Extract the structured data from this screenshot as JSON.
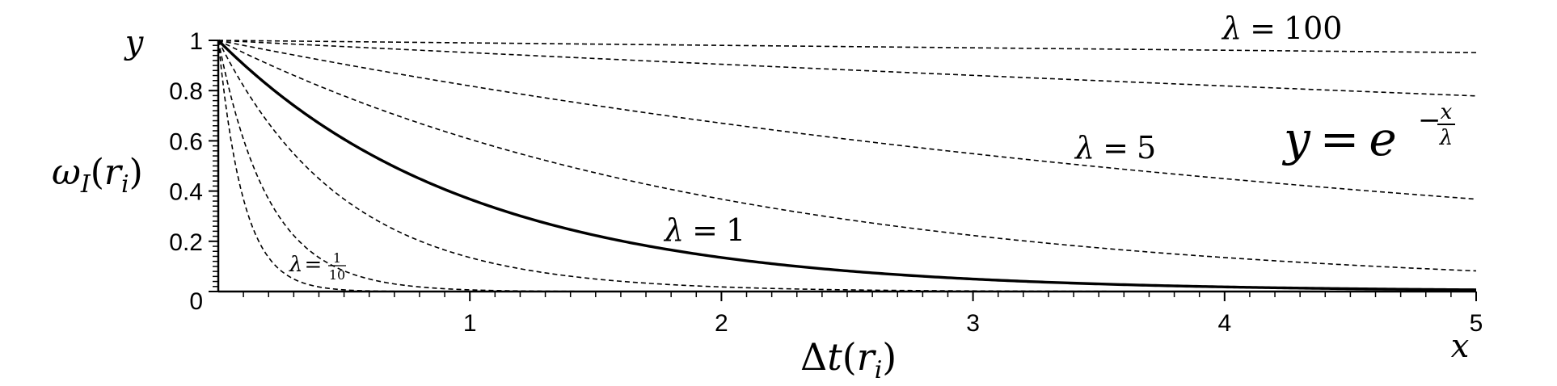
{
  "chart_data": {
    "type": "line",
    "title": "",
    "formula": {
      "y": "y",
      "eq": "=",
      "base": "e",
      "exp_sign": "−",
      "exp_num": "x",
      "exp_den": "λ"
    },
    "x_axis": {
      "corner_label": "x",
      "label": {
        "main": "Δ",
        "t": "t",
        "open": "(",
        "r": "r",
        "sub": "i",
        "close": ")"
      },
      "range": [
        0,
        5
      ],
      "ticks": [
        0,
        1,
        2,
        3,
        4,
        5
      ],
      "tick_labels": [
        "",
        "1",
        "2",
        "3",
        "4",
        "5"
      ]
    },
    "y_axis": {
      "corner_label": "y",
      "label": {
        "omega": "ω",
        "sub_I": "I",
        "open": "(",
        "r": "r",
        "sub": "i",
        "close": ")"
      },
      "range": [
        0,
        1
      ],
      "ticks": [
        0,
        0.2,
        0.4,
        0.6,
        0.8,
        1
      ],
      "tick_labels": [
        "0",
        "0.2",
        "0.4",
        "0.6",
        "0.8",
        "1"
      ]
    },
    "series": [
      {
        "lambda": 0.1,
        "style": "dashed"
      },
      {
        "lambda": 0.2,
        "style": "dashed"
      },
      {
        "lambda": 0.5,
        "style": "dashed"
      },
      {
        "lambda": 1,
        "style": "solid"
      },
      {
        "lambda": 2,
        "style": "dashed"
      },
      {
        "lambda": 5,
        "style": "dashed"
      },
      {
        "lambda": 20,
        "style": "dashed"
      },
      {
        "lambda": 100,
        "style": "dashed"
      }
    ],
    "annotations": [
      {
        "id": "lambda-100",
        "lambda_sym": "λ",
        "eq": "=",
        "value": "100",
        "at": [
          4.0,
          1.03
        ]
      },
      {
        "id": "lambda-5",
        "lambda_sym": "λ",
        "eq": "=",
        "value": "5",
        "at": [
          3.45,
          0.55
        ]
      },
      {
        "id": "lambda-1",
        "lambda_sym": "λ",
        "eq": "=",
        "value": "1",
        "at": [
          1.8,
          0.19
        ]
      },
      {
        "id": "lambda-tenth",
        "lambda_sym": "λ",
        "eq": "=",
        "num": "1",
        "den": "10",
        "at": [
          0.3,
          0.055
        ]
      }
    ],
    "grid": false,
    "legend": "none"
  }
}
